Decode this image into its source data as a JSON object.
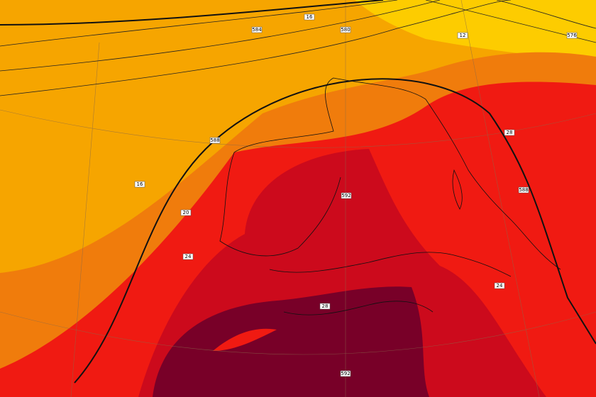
{
  "contour_labels": [
    "584",
    "580",
    "16",
    "12",
    "576",
    "588",
    "16",
    "20",
    "24",
    "592",
    "588",
    "28",
    "24",
    "28",
    "592"
  ]
}
